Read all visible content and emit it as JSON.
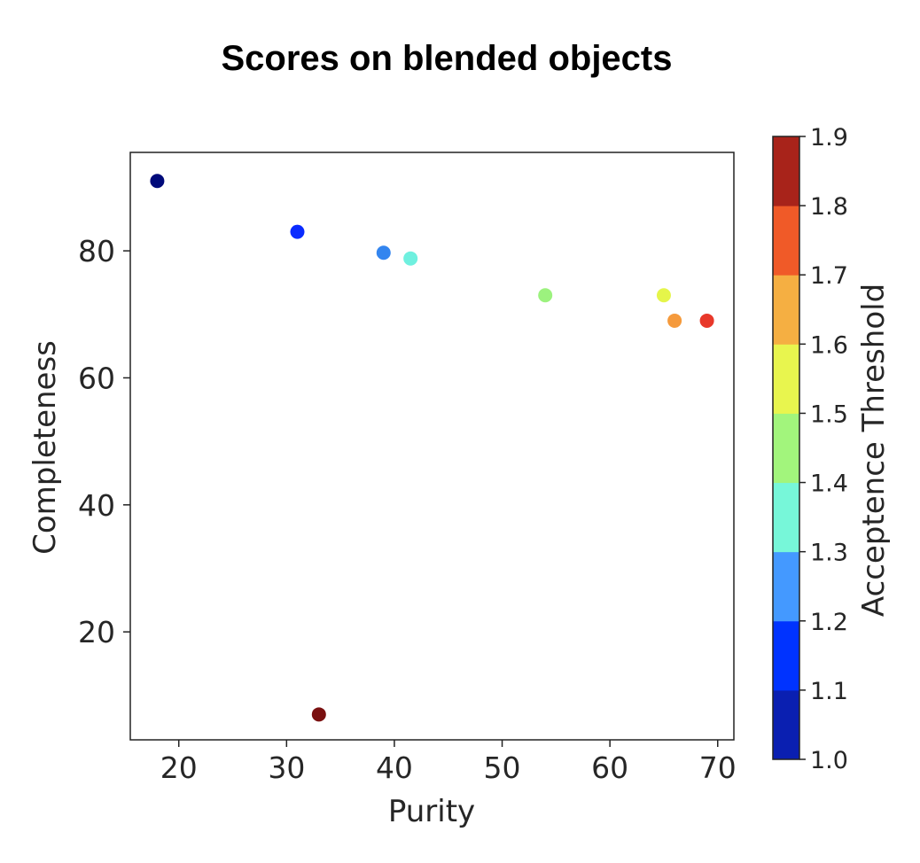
{
  "chart_data": {
    "type": "scatter",
    "title": "Scores on blended objects",
    "xlabel": "Purity",
    "ylabel": "Completeness",
    "xlim": [
      15.5,
      71.5
    ],
    "ylim": [
      3,
      95.5
    ],
    "xticks": [
      20,
      30,
      40,
      50,
      60,
      70
    ],
    "yticks": [
      20,
      40,
      60,
      80
    ],
    "grid": false,
    "colorbar": {
      "label": "Acceptence Threshold",
      "range": [
        1.0,
        1.9
      ],
      "ticks": [
        "1.0",
        "1.1",
        "1.2",
        "1.3",
        "1.4",
        "1.5",
        "1.6",
        "1.7",
        "1.8",
        "1.9"
      ],
      "colors": [
        "#0a1fb1",
        "#0033ff",
        "#4499ff",
        "#77f7d9",
        "#a2f57c",
        "#e8f54e",
        "#f5af42",
        "#f05a28",
        "#a8231a"
      ]
    },
    "points": [
      {
        "x": 18.0,
        "y": 91.0,
        "c": 1.0,
        "color": "#000a7a"
      },
      {
        "x": 31.0,
        "y": 83.0,
        "c": 1.1,
        "color": "#0a2bff"
      },
      {
        "x": 39.0,
        "y": 79.7,
        "c": 1.2,
        "color": "#3385ef"
      },
      {
        "x": 41.5,
        "y": 78.8,
        "c": 1.3,
        "color": "#6ff0df"
      },
      {
        "x": 54.0,
        "y": 73.0,
        "c": 1.4,
        "color": "#9cf27e"
      },
      {
        "x": 65.0,
        "y": 73.0,
        "c": 1.5,
        "color": "#e5f54a"
      },
      {
        "x": 66.0,
        "y": 69.0,
        "c": 1.6,
        "color": "#f59a3c"
      },
      {
        "x": 69.0,
        "y": 69.0,
        "c": 1.7,
        "color": "#e8382a"
      },
      {
        "x": 33.0,
        "y": 7.0,
        "c": 1.9,
        "color": "#7a1010"
      }
    ]
  }
}
